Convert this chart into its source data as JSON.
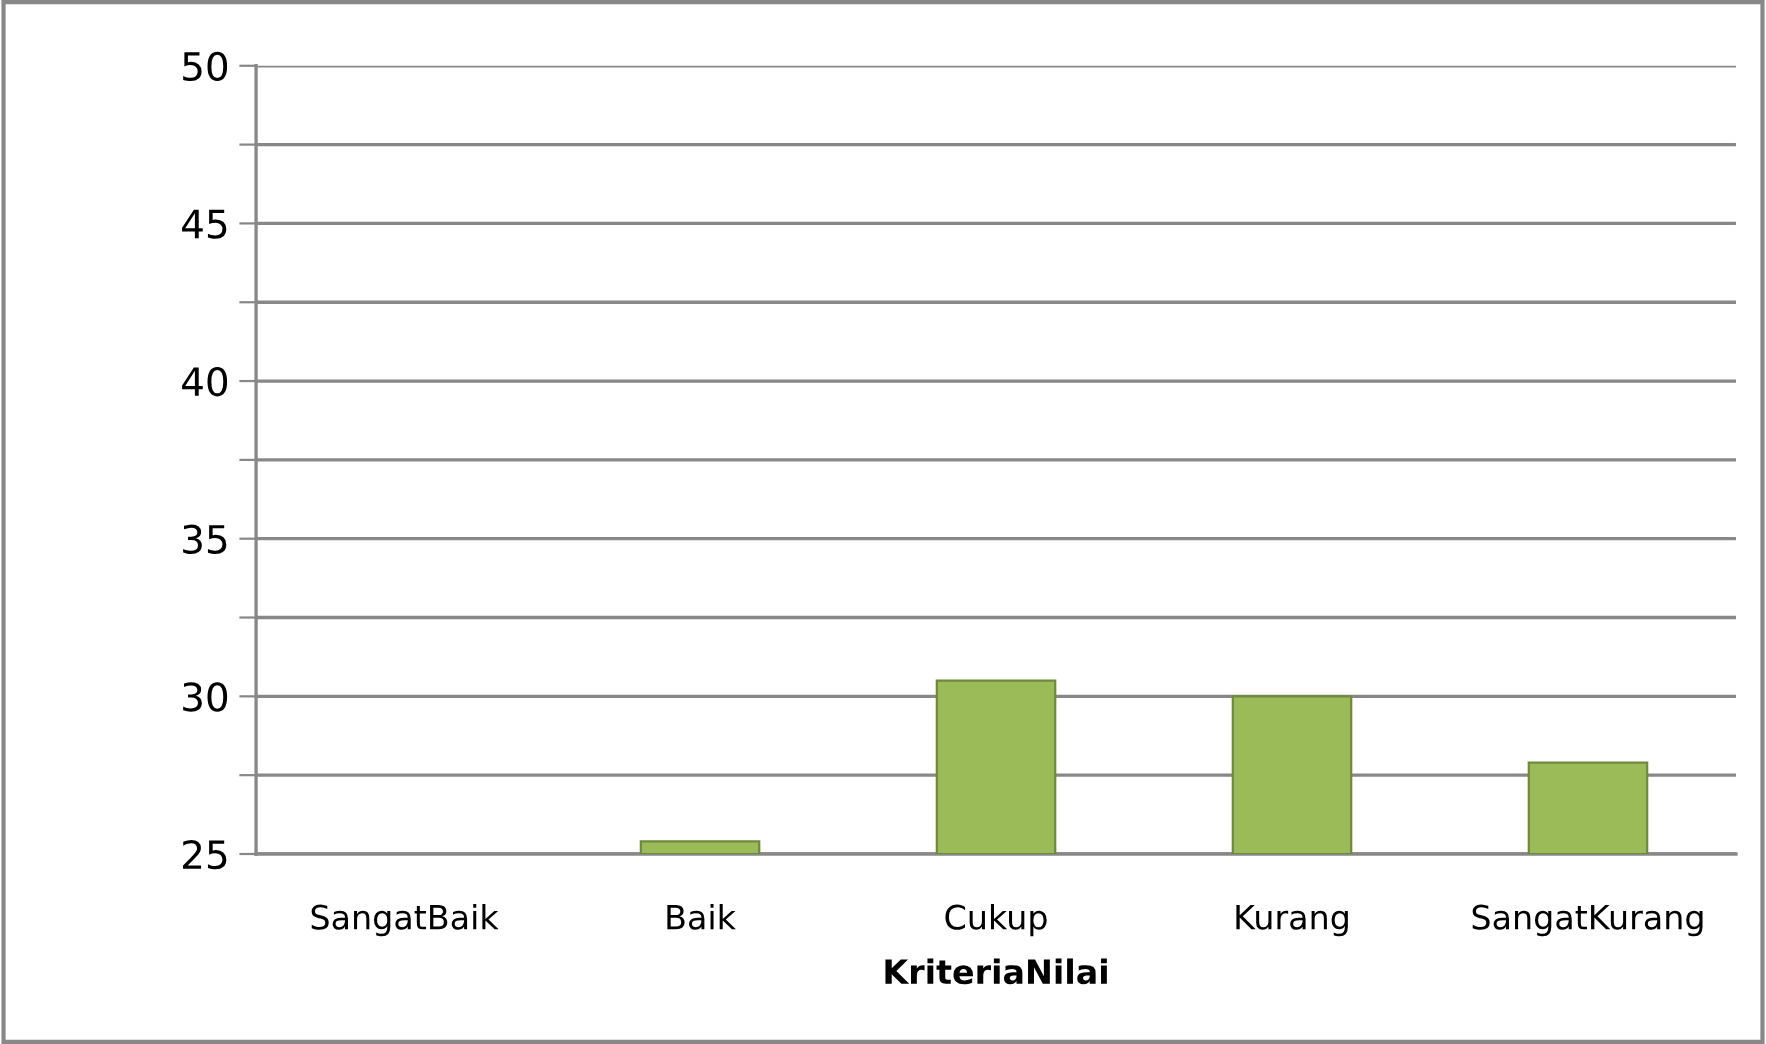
{
  "chart_data": {
    "type": "bar",
    "xlabel": "KriteriaNilai",
    "categories": [
      "SangatBaik",
      "Baik",
      "Cukup",
      "Kurang",
      "SangatKurang"
    ],
    "values": [
      null,
      25.4,
      30.5,
      30.0,
      27.9
    ],
    "color": "#9bbb59",
    "ylim": [
      25,
      50
    ],
    "yticks": [
      25,
      {
        "value": 27.5,
        "label": null
      },
      30,
      {
        "value": 32.5,
        "label": null
      },
      35,
      {
        "value": 37.5,
        "label": null
      },
      40,
      {
        "value": 42.5,
        "label": null
      },
      45,
      {
        "value": 47.5,
        "label": null
      },
      50
    ],
    "grid": "y",
    "legend": false
  }
}
